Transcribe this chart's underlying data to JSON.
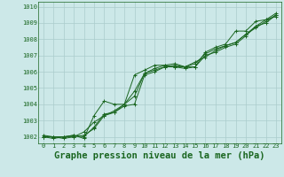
{
  "background_color": "#cce8e8",
  "grid_color": "#aacccc",
  "line_color": "#1a6620",
  "xlabel": "Graphe pression niveau de la mer (hPa)",
  "xlabel_fontsize": 7.5,
  "ytick_values": [
    1002,
    1003,
    1004,
    1005,
    1006,
    1007,
    1008,
    1009,
    1010
  ],
  "ylim": [
    1001.6,
    1010.3
  ],
  "xlim": [
    -0.5,
    23.5
  ],
  "xticks": [
    0,
    1,
    2,
    3,
    4,
    5,
    6,
    7,
    8,
    9,
    10,
    11,
    12,
    13,
    14,
    15,
    16,
    17,
    18,
    19,
    20,
    21,
    22,
    23
  ],
  "series": [
    [
      1002.0,
      1001.9,
      1002.0,
      1002.1,
      1001.9,
      1003.3,
      1004.2,
      1004.0,
      1004.0,
      1005.8,
      1006.1,
      1006.4,
      1006.4,
      1006.3,
      1006.2,
      1006.3,
      1007.2,
      1007.5,
      1007.7,
      1008.5,
      1008.5,
      1009.1,
      1009.2,
      1009.6
    ],
    [
      1002.0,
      1002.0,
      1002.0,
      1002.0,
      1002.1,
      1002.5,
      1003.3,
      1003.5,
      1003.9,
      1004.0,
      1005.8,
      1006.0,
      1006.3,
      1006.3,
      1006.3,
      1006.3,
      1007.0,
      1007.2,
      1007.5,
      1007.7,
      1008.2,
      1008.8,
      1009.2,
      1009.4
    ],
    [
      1002.1,
      1002.0,
      1001.9,
      1002.0,
      1002.3,
      1002.9,
      1003.3,
      1003.6,
      1004.0,
      1004.5,
      1005.9,
      1006.1,
      1006.3,
      1006.4,
      1006.3,
      1006.6,
      1006.9,
      1007.3,
      1007.6,
      1007.8,
      1008.3,
      1008.8,
      1009.0,
      1009.5
    ],
    [
      1002.0,
      1002.0,
      1002.0,
      1002.1,
      1002.0,
      1002.6,
      1003.4,
      1003.5,
      1004.0,
      1004.8,
      1005.9,
      1006.2,
      1006.4,
      1006.5,
      1006.3,
      1006.5,
      1007.1,
      1007.4,
      1007.6,
      1007.8,
      1008.3,
      1008.7,
      1009.1,
      1009.5
    ]
  ]
}
